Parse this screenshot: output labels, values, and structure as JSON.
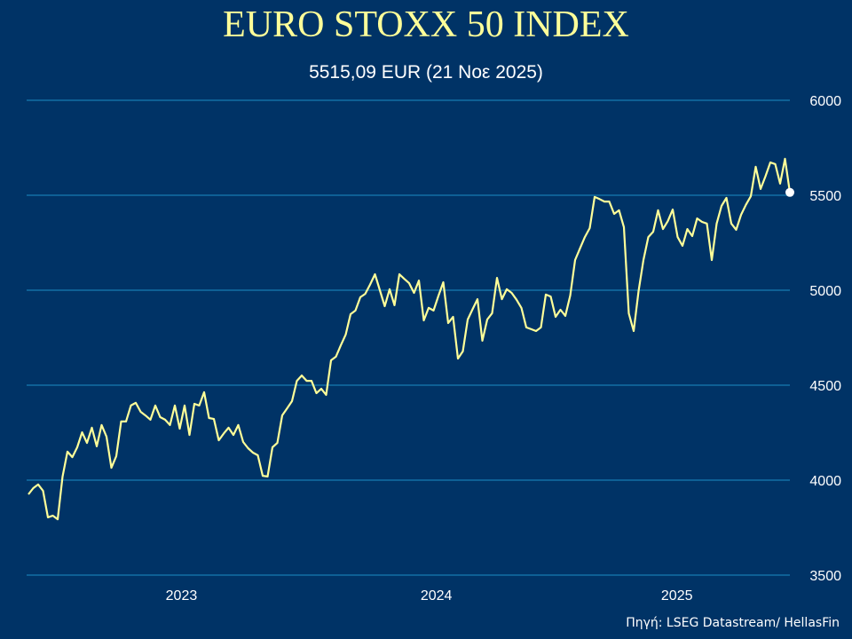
{
  "chart_data": {
    "type": "line",
    "title": "EURO STOXX 50 INDEX",
    "subtitle": "5515,09 EUR (21 Νοε 2025)",
    "source": "Πηγή: LSEG Datastream/ HellasFin",
    "xlabel": "",
    "ylabel": "",
    "ylim": [
      3500,
      6000
    ],
    "yticks": [
      3500,
      4000,
      4500,
      5000,
      5500,
      6000
    ],
    "yticks_position": "right",
    "xtick_labels": [
      "2023",
      "2024",
      "2025"
    ],
    "grid": "horizontal",
    "colors": {
      "background": "#003366",
      "line": "#FFFF99",
      "grid": "#1B8CC4",
      "text": "#FFFFFF",
      "endpoint_marker": "#FFFFFF"
    },
    "x": [
      "2022-11-25",
      "2022-12-02",
      "2022-12-09",
      "2022-12-16",
      "2022-12-23",
      "2022-12-30",
      "2023-01-06",
      "2023-01-13",
      "2023-01-20",
      "2023-01-27",
      "2023-02-03",
      "2023-02-10",
      "2023-02-17",
      "2023-02-24",
      "2023-03-03",
      "2023-03-10",
      "2023-03-17",
      "2023-03-24",
      "2023-03-31",
      "2023-04-07",
      "2023-04-14",
      "2023-04-21",
      "2023-04-28",
      "2023-05-05",
      "2023-05-12",
      "2023-05-19",
      "2023-05-26",
      "2023-06-02",
      "2023-06-09",
      "2023-06-16",
      "2023-06-23",
      "2023-06-30",
      "2023-07-07",
      "2023-07-14",
      "2023-07-21",
      "2023-07-28",
      "2023-08-04",
      "2023-08-11",
      "2023-08-18",
      "2023-08-25",
      "2023-09-01",
      "2023-09-08",
      "2023-09-15",
      "2023-09-22",
      "2023-09-29",
      "2023-10-06",
      "2023-10-13",
      "2023-10-20",
      "2023-10-27",
      "2023-11-03",
      "2023-11-10",
      "2023-11-17",
      "2023-11-24",
      "2023-12-01",
      "2023-12-08",
      "2023-12-15",
      "2023-12-22",
      "2023-12-29",
      "2024-01-05",
      "2024-01-12",
      "2024-01-19",
      "2024-01-26",
      "2024-02-02",
      "2024-02-09",
      "2024-02-16",
      "2024-02-23",
      "2024-03-01",
      "2024-03-08",
      "2024-03-15",
      "2024-03-22",
      "2024-03-29",
      "2024-04-05",
      "2024-04-12",
      "2024-04-19",
      "2024-04-26",
      "2024-05-03",
      "2024-05-10",
      "2024-05-17",
      "2024-05-24",
      "2024-05-31",
      "2024-06-07",
      "2024-06-14",
      "2024-06-21",
      "2024-06-28",
      "2024-07-05",
      "2024-07-12",
      "2024-07-19",
      "2024-07-26",
      "2024-08-02",
      "2024-08-09",
      "2024-08-16",
      "2024-08-23",
      "2024-08-30",
      "2024-09-06",
      "2024-09-13",
      "2024-09-20",
      "2024-09-27",
      "2024-10-04",
      "2024-10-11",
      "2024-10-18",
      "2024-10-25",
      "2024-11-01",
      "2024-11-08",
      "2024-11-15",
      "2024-11-22",
      "2024-11-29",
      "2024-12-06",
      "2024-12-13",
      "2024-12-20",
      "2024-12-27",
      "2025-01-03",
      "2025-01-10",
      "2025-01-17",
      "2025-01-24",
      "2025-01-31",
      "2025-02-07",
      "2025-02-14",
      "2025-02-21",
      "2025-02-28",
      "2025-03-07",
      "2025-03-14",
      "2025-03-21",
      "2025-03-28",
      "2025-04-04",
      "2025-04-11",
      "2025-04-18",
      "2025-04-25",
      "2025-05-02",
      "2025-05-09",
      "2025-05-16",
      "2025-05-23",
      "2025-05-30",
      "2025-06-06",
      "2025-06-13",
      "2025-06-20",
      "2025-06-27",
      "2025-07-04",
      "2025-07-11",
      "2025-07-18",
      "2025-07-25",
      "2025-08-01",
      "2025-08-08",
      "2025-08-15",
      "2025-08-22",
      "2025-08-29",
      "2025-09-05",
      "2025-09-12",
      "2025-09-19",
      "2025-09-26",
      "2025-10-03",
      "2025-10-10",
      "2025-10-17",
      "2025-10-24",
      "2025-10-31",
      "2025-11-07",
      "2025-11-14",
      "2025-11-21"
    ],
    "series": [
      {
        "values": [
          3925,
          3958,
          3977,
          3944,
          3804,
          3813,
          3794,
          4019,
          4150,
          4121,
          4173,
          4252,
          4196,
          4276,
          4178,
          4290,
          4229,
          4065,
          4126,
          4309,
          4309,
          4393,
          4407,
          4360,
          4340,
          4318,
          4393,
          4332,
          4318,
          4290,
          4393,
          4271,
          4393,
          4238,
          4402,
          4393,
          4463,
          4327,
          4322,
          4210,
          4245,
          4276,
          4238,
          4290,
          4201,
          4168,
          4145,
          4131,
          4023,
          4019,
          4173,
          4196,
          4341,
          4378,
          4416,
          4523,
          4551,
          4523,
          4523,
          4458,
          4481,
          4449,
          4631,
          4650,
          4710,
          4766,
          4874,
          4893,
          4963,
          4981,
          5030,
          5084,
          5000,
          4916,
          5005,
          4921,
          5084,
          5060,
          5037,
          4986,
          5051,
          4841,
          4907,
          4893,
          4970,
          5042,
          4827,
          4860,
          4640,
          4678,
          4846,
          4900,
          4953,
          4734,
          4846,
          4879,
          5065,
          4953,
          5005,
          4986,
          4950,
          4907,
          4804,
          4795,
          4785,
          4804,
          4977,
          4967,
          4860,
          4897,
          4865,
          4972,
          5159,
          5220,
          5280,
          5327,
          5491,
          5480,
          5467,
          5467,
          5402,
          5421,
          5332,
          4878,
          4785,
          4995,
          5159,
          5280,
          5308,
          5421,
          5322,
          5364,
          5425,
          5280,
          5234,
          5322,
          5285,
          5378,
          5360,
          5351,
          5159,
          5351,
          5444,
          5486,
          5351,
          5318,
          5397,
          5450,
          5495,
          5650,
          5533,
          5600,
          5673,
          5664,
          5561,
          5692,
          5515
        ]
      }
    ]
  }
}
